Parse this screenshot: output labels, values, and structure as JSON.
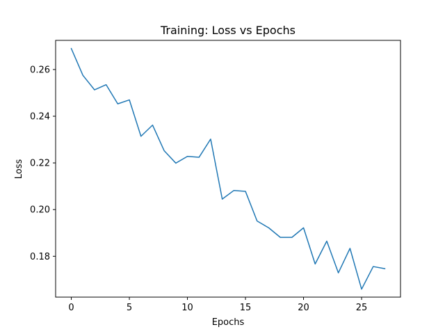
{
  "chart_data": {
    "type": "line",
    "title": "Training: Loss vs Epochs",
    "xlabel": "Epochs",
    "ylabel": "Loss",
    "xlim": [
      -1.35,
      28.35
    ],
    "ylim": [
      0.1625,
      0.2725
    ],
    "xticks": [
      0,
      5,
      10,
      15,
      20,
      25
    ],
    "yticks": [
      0.18,
      0.2,
      0.22,
      0.24,
      0.26
    ],
    "grid": false,
    "series": [
      {
        "color": "#1f77b4",
        "x": [
          0,
          1,
          2,
          3,
          4,
          5,
          6,
          7,
          8,
          9,
          10,
          11,
          12,
          13,
          14,
          15,
          16,
          17,
          18,
          19,
          20,
          21,
          22,
          23,
          24,
          25,
          26,
          27
        ],
        "y": [
          0.269,
          0.2575,
          0.2513,
          0.2535,
          0.2453,
          0.247,
          0.2314,
          0.2362,
          0.2252,
          0.2199,
          0.2228,
          0.2224,
          0.2302,
          0.2045,
          0.2082,
          0.2078,
          0.1951,
          0.1922,
          0.1881,
          0.1881,
          0.1922,
          0.1767,
          0.1865,
          0.1729,
          0.1834,
          0.1659,
          0.1756,
          0.1747
        ]
      }
    ]
  }
}
